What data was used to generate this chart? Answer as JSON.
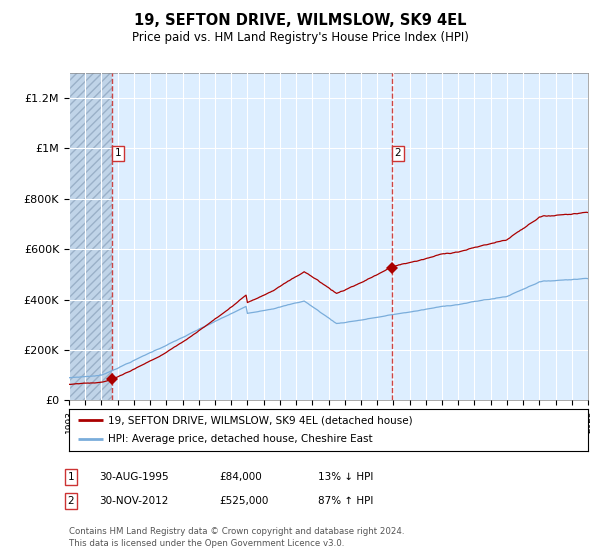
{
  "title": "19, SEFTON DRIVE, WILMSLOW, SK9 4EL",
  "subtitle": "Price paid vs. HM Land Registry's House Price Index (HPI)",
  "x_start_year": 1993,
  "x_end_year": 2025,
  "ylim": [
    0,
    1300000
  ],
  "yticks": [
    0,
    200000,
    400000,
    600000,
    800000,
    1000000,
    1200000
  ],
  "ytick_labels": [
    "£0",
    "£200K",
    "£400K",
    "£600K",
    "£800K",
    "£1M",
    "£1.2M"
  ],
  "sale1_year": 1995.67,
  "sale1_price": 84000,
  "sale2_year": 2012.92,
  "sale2_price": 525000,
  "hpi_color": "#7aaddb",
  "price_color": "#aa0000",
  "bg_color": "#ddeeff",
  "grid_color": "#ffffff",
  "legend_label1": "19, SEFTON DRIVE, WILMSLOW, SK9 4EL (detached house)",
  "legend_label2": "HPI: Average price, detached house, Cheshire East",
  "table_row1": [
    "1",
    "30-AUG-1995",
    "£84,000",
    "13% ↓ HPI"
  ],
  "table_row2": [
    "2",
    "30-NOV-2012",
    "£525,000",
    "87% ↑ HPI"
  ],
  "footnote": "Contains HM Land Registry data © Crown copyright and database right 2024.\nThis data is licensed under the Open Government Licence v3.0."
}
